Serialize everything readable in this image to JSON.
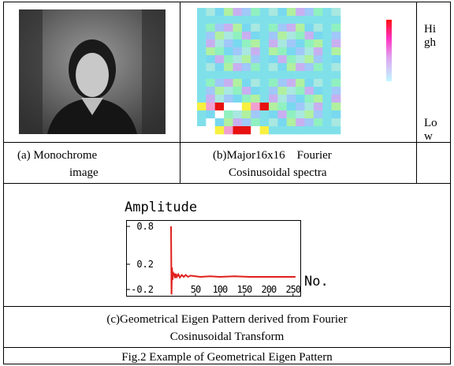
{
  "figure": {
    "caption_a": [
      "(a) Monochrome",
      "image"
    ],
    "caption_b": [
      "(b)Major16x16    Fourier",
      "Cosinusoidal spectra"
    ],
    "legend_high": [
      "Hi",
      "gh"
    ],
    "legend_low": [
      "Lo",
      "w"
    ],
    "caption_c": [
      "(c)Geometrical Eigen Pattern derived from Fourier",
      "Cosinusoidal Transform"
    ],
    "caption_fig": "Fig.2 Example of Geometrical Eigen Pattern"
  },
  "chart_data": {
    "type": "line",
    "y_label": "Amplitude",
    "x_label": "No.",
    "xlim": [
      0,
      260
    ],
    "ylim": [
      -0.3,
      0.9
    ],
    "xticks": [
      50,
      100,
      150,
      200,
      250
    ],
    "yticks": [
      0.8,
      0.2,
      -0.2
    ],
    "series": [
      {
        "color": "#e0201c",
        "x": [
          0,
          1,
          2,
          3,
          4,
          5,
          6,
          8,
          10,
          12,
          15,
          18,
          22,
          26,
          30,
          35,
          40,
          50,
          60,
          80,
          100,
          130,
          160,
          200,
          255
        ],
        "values": [
          0.8,
          -0.28,
          0.15,
          -0.05,
          0.08,
          0.02,
          0.06,
          -0.02,
          0.05,
          0.0,
          0.04,
          -0.01,
          0.03,
          0.0,
          0.03,
          0.0,
          0.02,
          0.01,
          0.0,
          0.01,
          0.0,
          0.01,
          0.0,
          0.0,
          0.0
        ]
      }
    ]
  }
}
